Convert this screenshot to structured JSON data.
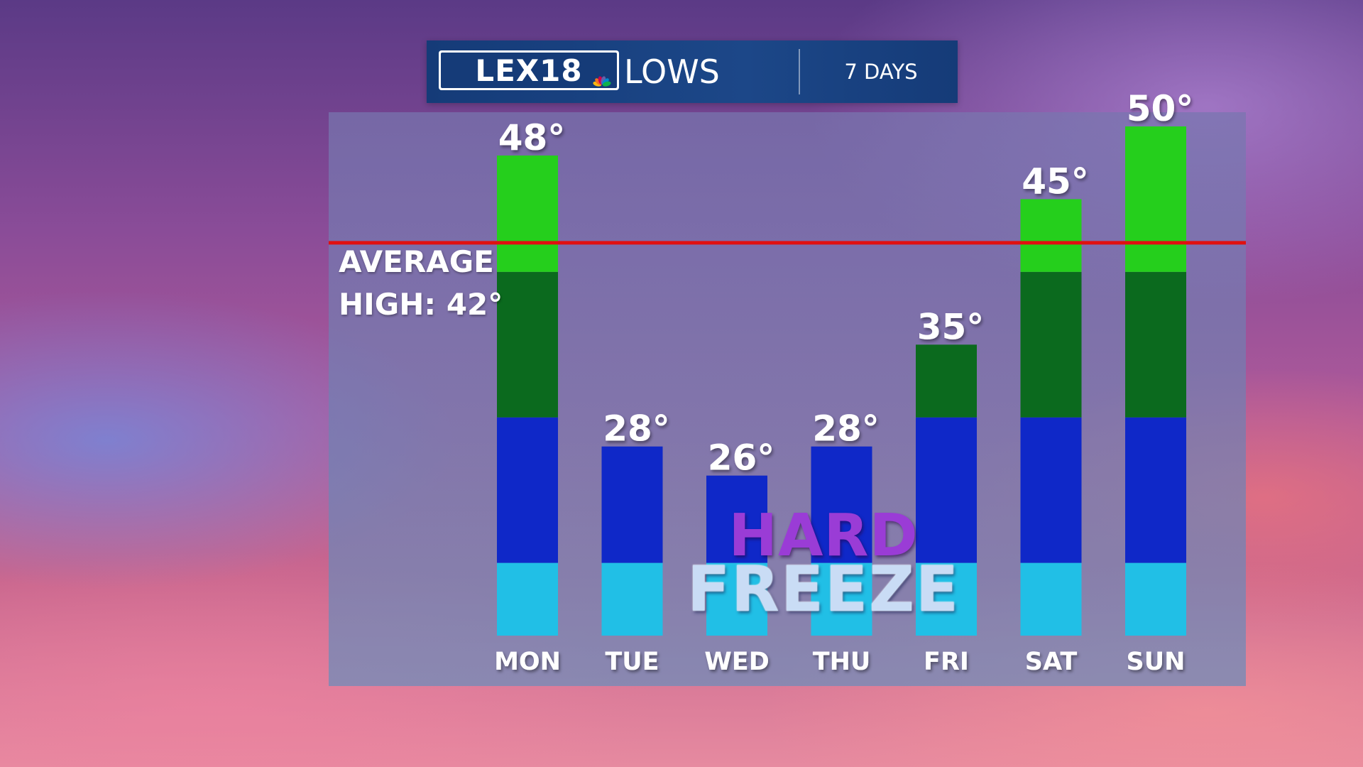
{
  "header": {
    "logo_text": "LEX18",
    "title": "LOWS",
    "period": "7 DAYS"
  },
  "average": {
    "line1": "AVERAGE",
    "line2": "HIGH: 42°",
    "value": 42,
    "color": "#e01010"
  },
  "callout": {
    "line1": "HARD",
    "line2": "FREEZE"
  },
  "colors": {
    "band_lightblue": "#21bfe6",
    "band_blue": "#0f28c8",
    "band_darkgreen": "#0b6a1e",
    "band_green": "#25cf1c"
  },
  "chart_data": {
    "type": "bar",
    "title": "LOWS",
    "categories": [
      "MON",
      "TUE",
      "WED",
      "THU",
      "FRI",
      "SAT",
      "SUN"
    ],
    "values": [
      48,
      28,
      26,
      28,
      35,
      45,
      50
    ],
    "value_labels": [
      "48°",
      "28°",
      "26°",
      "28°",
      "35°",
      "45°",
      "50°"
    ],
    "ylim": [
      15,
      50
    ],
    "color_bands": [
      {
        "from": 15,
        "to": 20,
        "color": "#21bfe6"
      },
      {
        "from": 20,
        "to": 30,
        "color": "#0f28c8"
      },
      {
        "from": 30,
        "to": 40,
        "color": "#0b6a1e"
      },
      {
        "from": 40,
        "to": 60,
        "color": "#25cf1c"
      }
    ],
    "reference_line": {
      "value": 42,
      "label": "AVERAGE HIGH: 42°"
    },
    "grid": false,
    "legend": "none"
  }
}
